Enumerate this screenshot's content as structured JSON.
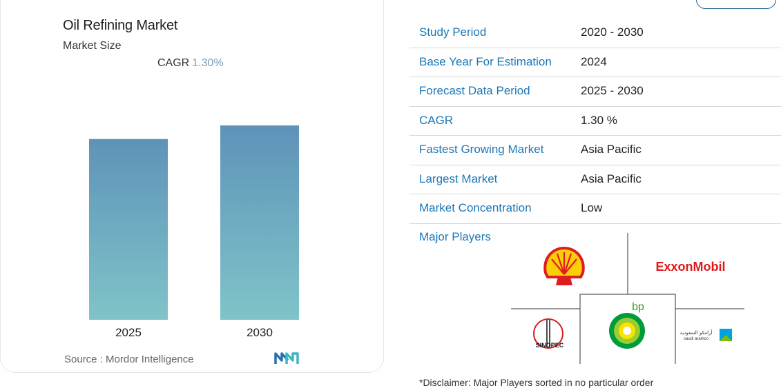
{
  "chart_data": {
    "type": "bar",
    "title": "Oil Refining Market",
    "subtitle": "Market Size",
    "categories": [
      "2025",
      "2030"
    ],
    "values": [
      0.93,
      1.0
    ],
    "xlabel": "",
    "ylabel": "",
    "grid": false,
    "cagr_label": "CAGR",
    "cagr_value": "1.30%",
    "colors": {
      "bar_top": "#5e93b8",
      "bar_bottom": "#80c4c9"
    }
  },
  "source_text": "Source :  Mordor Intelligence",
  "brand_logo": "mordor-intelligence-logo",
  "table": {
    "rows": [
      {
        "key": "Study Period",
        "value": "2020 - 2030"
      },
      {
        "key": "Base Year For Estimation",
        "value": "2024"
      },
      {
        "key": "Forecast Data Period",
        "value": "2025 - 2030"
      },
      {
        "key": "CAGR",
        "value": "1.30 %"
      },
      {
        "key": "Fastest Growing Market",
        "value": "Asia Pacific"
      },
      {
        "key": "Largest Market",
        "value": "Asia Pacific"
      },
      {
        "key": "Market Concentration",
        "value": "Low"
      }
    ]
  },
  "major_players_label": "Major Players",
  "players": {
    "shell": "shell-logo",
    "exxon": "ExxonMobil",
    "bp": "bp",
    "sinopec": "SINOPEC",
    "aramco_en": "saudi aramco",
    "aramco_ar": "أرامكو السعودية"
  },
  "disclaimer": "*Disclaimer: Major Players sorted in no particular order",
  "colors": {
    "key_text": "#1b78b8",
    "accent": "#1f5f86"
  }
}
